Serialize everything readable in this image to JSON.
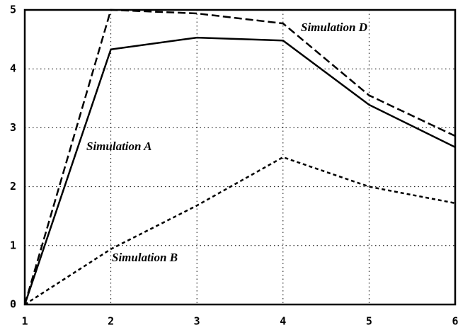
{
  "chart_data": {
    "type": "line",
    "x": [
      1,
      2,
      3,
      4,
      5,
      6
    ],
    "xlim": [
      1,
      6
    ],
    "xticks": [
      1,
      2,
      3,
      4,
      5,
      6
    ],
    "ylim": [
      0,
      5
    ],
    "yticks": [
      0,
      1,
      2,
      3,
      4,
      5
    ],
    "grid": true,
    "series": [
      {
        "name": "Simulation A",
        "color": "#000000",
        "style": "solid",
        "values": [
          0,
          4.33,
          4.53,
          4.48,
          3.39,
          2.67
        ]
      },
      {
        "name": "Simulation B",
        "color": "#000000",
        "style": "dotted",
        "values": [
          0,
          0.94,
          1.68,
          2.5,
          2.0,
          1.72
        ]
      },
      {
        "name": "Simulation D",
        "color": "#000000",
        "style": "dashed",
        "values": [
          0,
          5.0,
          4.94,
          4.77,
          3.55,
          2.86
        ]
      }
    ]
  }
}
